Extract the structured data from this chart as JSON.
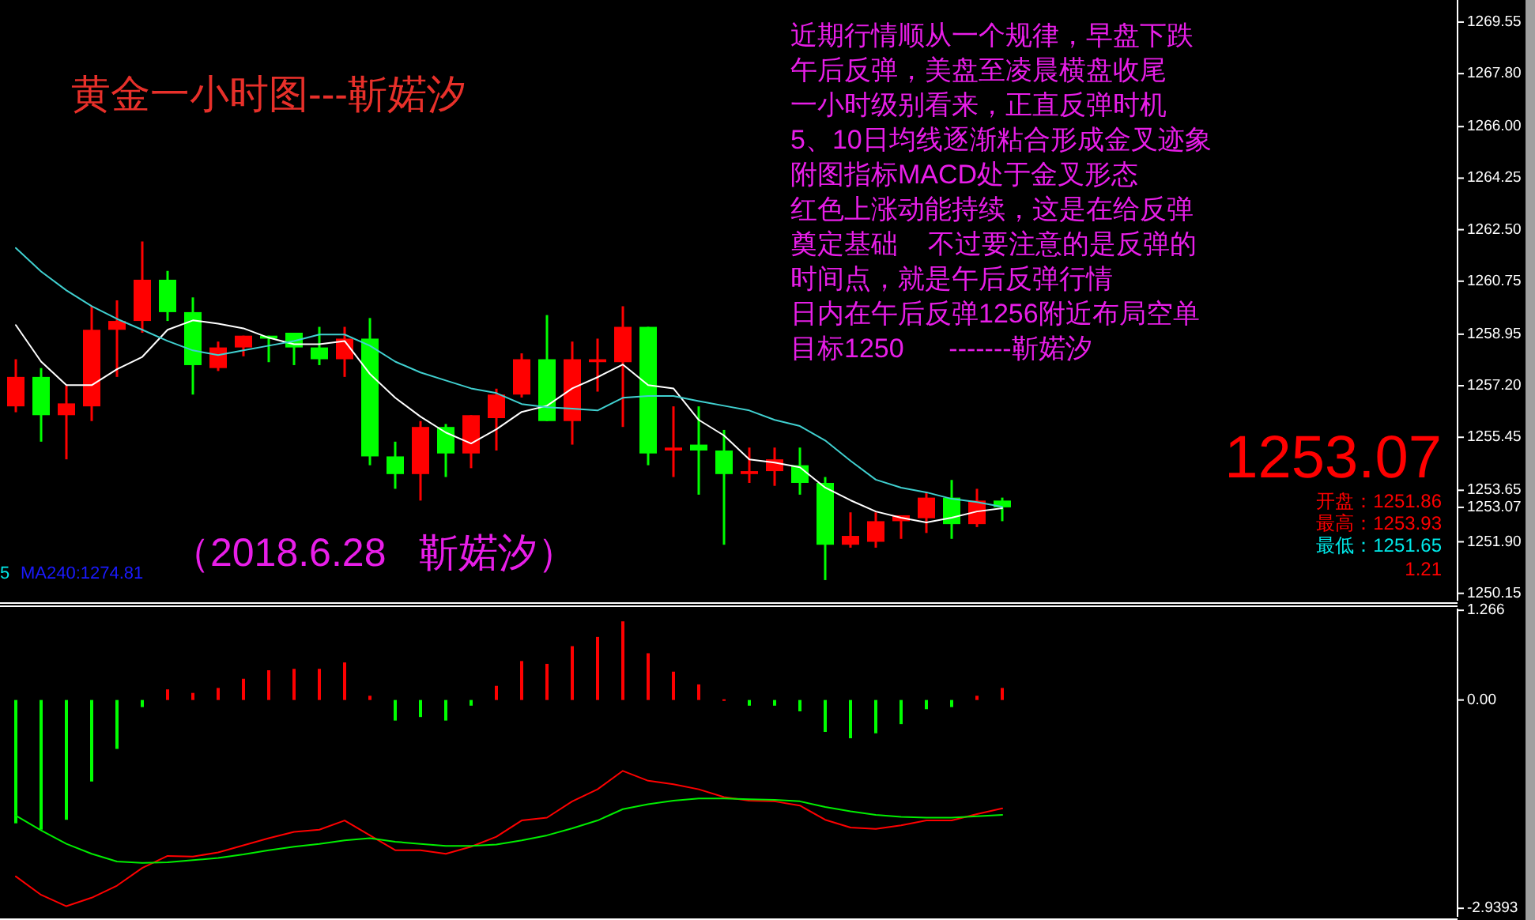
{
  "chart_data": [
    {
      "type": "candlestick",
      "categories": [
        null,
        null,
        null,
        null,
        null,
        null,
        null,
        null,
        null,
        null,
        null,
        null,
        null,
        null,
        null,
        null,
        null,
        null,
        null,
        null,
        null,
        null,
        null,
        null,
        null,
        null,
        null,
        null,
        null,
        null,
        null,
        null,
        null,
        null,
        null,
        null,
        null,
        null,
        null,
        null
      ],
      "ohlc": [
        [
          1256.5,
          1258.1,
          1256.3,
          1257.5
        ],
        [
          1257.5,
          1257.8,
          1255.3,
          1256.2
        ],
        [
          1256.2,
          1257.2,
          1254.7,
          1256.6
        ],
        [
          1256.5,
          1259.9,
          1256.0,
          1259.1
        ],
        [
          1259.1,
          1260.1,
          1257.5,
          1259.4
        ],
        [
          1259.4,
          1262.1,
          1259.0,
          1260.8
        ],
        [
          1260.8,
          1261.1,
          1259.4,
          1259.7
        ],
        [
          1259.7,
          1260.2,
          1256.9,
          1257.9
        ],
        [
          1257.8,
          1258.7,
          1257.7,
          1258.5
        ],
        [
          1258.5,
          1258.9,
          1258.2,
          1258.9
        ],
        [
          1258.9,
          1258.9,
          1258.0,
          1258.8
        ],
        [
          1259.0,
          1259.0,
          1257.9,
          1258.5
        ],
        [
          1258.5,
          1259.2,
          1257.9,
          1258.1
        ],
        [
          1258.1,
          1259.2,
          1257.5,
          1258.8
        ],
        [
          1258.8,
          1259.5,
          1254.5,
          1254.8
        ],
        [
          1254.8,
          1255.3,
          1253.7,
          1254.2
        ],
        [
          1254.2,
          1256.0,
          1253.3,
          1255.8
        ],
        [
          1255.8,
          1255.9,
          1254.1,
          1254.9
        ],
        [
          1254.9,
          1256.2,
          1254.4,
          1256.2
        ],
        [
          1256.1,
          1257.1,
          1255.0,
          1256.9
        ],
        [
          1256.9,
          1258.3,
          1256.8,
          1258.1
        ],
        [
          1258.1,
          1259.6,
          1256.0,
          1256.0
        ],
        [
          1256.0,
          1258.7,
          1255.2,
          1258.1
        ],
        [
          1258.0,
          1258.8,
          1257.0,
          1258.1
        ],
        [
          1258.0,
          1259.9,
          1255.8,
          1259.2
        ],
        [
          1259.2,
          1259.2,
          1254.5,
          1254.9
        ],
        [
          1255.0,
          1256.5,
          1254.1,
          1255.1
        ],
        [
          1255.2,
          1256.5,
          1253.5,
          1255.0
        ],
        [
          1255.0,
          1255.7,
          1251.8,
          1254.2
        ],
        [
          1254.2,
          1255.1,
          1253.9,
          1254.3
        ],
        [
          1254.3,
          1255.1,
          1253.8,
          1254.7
        ],
        [
          1254.5,
          1255.1,
          1253.5,
          1253.9
        ],
        [
          1253.9,
          1254.1,
          1250.6,
          1251.8
        ],
        [
          1251.8,
          1252.9,
          1251.7,
          1252.1
        ],
        [
          1251.9,
          1252.9,
          1251.7,
          1252.6
        ],
        [
          1252.6,
          1252.8,
          1252.0,
          1252.8
        ],
        [
          1252.7,
          1253.6,
          1252.2,
          1253.4
        ],
        [
          1253.4,
          1254.0,
          1252.0,
          1252.5
        ],
        [
          1252.5,
          1253.7,
          1252.4,
          1253.3
        ],
        [
          1253.3,
          1253.4,
          1252.6,
          1253.07
        ]
      ],
      "colors": [
        "#ff0000",
        "#00ff00",
        "#ff0000",
        "#ff0000",
        "#ff0000",
        "#ff0000",
        "#00ff00",
        "#00ff00",
        "#ff0000",
        "#ff0000",
        "#00ff00",
        "#00ff00",
        "#00ff00",
        "#ff0000",
        "#00ff00",
        "#00ff00",
        "#ff0000",
        "#00ff00",
        "#ff0000",
        "#ff0000",
        "#ff0000",
        "#00ff00",
        "#ff0000",
        "#ff0000",
        "#ff0000",
        "#00ff00",
        "#ff0000",
        "#00ff00",
        "#00ff00",
        "#ff0000",
        "#ff0000",
        "#00ff00",
        "#00ff00",
        "#ff0000",
        "#ff0000",
        "#ff0000",
        "#ff0000",
        "#00ff00",
        "#ff0000",
        "#00ff00"
      ],
      "series": [
        {
          "type": "line",
          "color": "#ffffff",
          "values": [
            1259.26,
            1258.02,
            1257.22,
            1257.22,
            1257.76,
            1258.18,
            1259.1,
            1259.42,
            1259.31,
            1259.15,
            1258.83,
            1258.61,
            1258.61,
            1258.72,
            1257.6,
            1256.79,
            1256.15,
            1255.61,
            1255.24,
            1255.72,
            1256.31,
            1256.52,
            1257.11,
            1257.49,
            1257.92,
            1257.22,
            1257.11,
            1256.04,
            1255.51,
            1254.7,
            1254.59,
            1254.43,
            1253.74,
            1253.31,
            1252.93,
            1252.72,
            1252.56,
            1252.72,
            1252.93,
            1253.04
          ]
        },
        {
          "type": "line",
          "color": "#40d0d0",
          "values": [
            1261.88,
            1261.08,
            1260.44,
            1259.9,
            1259.47,
            1259.1,
            1258.72,
            1258.4,
            1258.24,
            1258.4,
            1258.56,
            1258.72,
            1258.94,
            1258.94,
            1258.56,
            1258.02,
            1257.65,
            1257.38,
            1257.11,
            1256.95,
            1256.58,
            1256.47,
            1256.42,
            1256.36,
            1256.79,
            1256.85,
            1256.85,
            1256.68,
            1256.52,
            1256.36,
            1256.04,
            1255.83,
            1255.34,
            1254.65,
            1254.01,
            1253.74,
            1253.58,
            1253.36,
            1253.25,
            1253.09
          ]
        }
      ],
      "ylim": [
        1249.9,
        1270.3
      ],
      "yticks": [
        {
          "value": 1269.55,
          "label": "1269.55"
        },
        {
          "value": 1267.8,
          "label": "1267.80"
        },
        {
          "value": 1266,
          "label": "1266.00"
        },
        {
          "value": 1264.25,
          "label": "1264.25"
        },
        {
          "value": 1262.5,
          "label": "1262.50"
        },
        {
          "value": 1260.75,
          "label": "1260.75"
        },
        {
          "value": 1258.95,
          "label": "1258.95"
        },
        {
          "value": 1257.2,
          "label": "1257.20"
        },
        {
          "value": 1255.45,
          "label": "1255.45"
        },
        {
          "value": 1253.65,
          "label": "1253.65"
        },
        {
          "value": 1253.07,
          "label": "1253.07"
        },
        {
          "value": 1251.9,
          "label": "1251.90"
        },
        {
          "value": 1250.15,
          "label": "1250.15"
        }
      ],
      "tick_labels": "y",
      "annotations": [
        "黄金一小时图---靳婼汐",
        "近期行情顺从一个规律，早盘下跌",
        "午后反弹，美盘至凌晨横盘收尾",
        "一小时级别看来，正直反弹时机",
        "5、10日均线逐渐粘合形成金叉迹象",
        "附图指标MACD处于金叉形态",
        "红色上涨动能持续，这是在给反弹",
        "奠定基础    不过要注意的是反弹的",
        "时间点，就是午后反弹行情",
        "日内在午后反弹1256附近布局空单",
        "目标1250      -------靳婼汐",
        "（2018.6.28   靳婼汐）",
        "1253.07",
        "开盘：1251.86",
        "最高：1253.93",
        "最低：1251.65",
        "1.21",
        "MA240:1274.81",
        "5"
      ]
    },
    {
      "type": "bar",
      "categories": [
        null,
        null,
        null,
        null,
        null,
        null,
        null,
        null,
        null,
        null,
        null,
        null,
        null,
        null,
        null,
        null,
        null,
        null,
        null,
        null,
        null,
        null,
        null,
        null,
        null,
        null,
        null,
        null,
        null,
        null,
        null,
        null,
        null,
        null,
        null,
        null,
        null,
        null,
        null,
        null
      ],
      "series": [
        {
          "type": "bar",
          "colors": [
            "#00ff00",
            "#00ff00",
            "#00ff00",
            "#00ff00",
            "#00ff00",
            "#00ff00",
            "#ff0000",
            "#ff0000",
            "#ff0000",
            "#ff0000",
            "#ff0000",
            "#ff0000",
            "#ff0000",
            "#ff0000",
            "#ff0000",
            "#00ff00",
            "#00ff00",
            "#00ff00",
            "#00ff00",
            "#ff0000",
            "#ff0000",
            "#ff0000",
            "#ff0000",
            "#ff0000",
            "#ff0000",
            "#ff0000",
            "#ff0000",
            "#ff0000",
            "#ff0000",
            "#00ff00",
            "#00ff00",
            "#00ff00",
            "#00ff00",
            "#00ff00",
            "#00ff00",
            "#00ff00",
            "#00ff00",
            "#00ff00",
            "#ff0000",
            "#ff0000"
          ],
          "values": [
            -1.74,
            -1.83,
            -1.69,
            -1.15,
            -0.69,
            -0.1,
            0.15,
            0.1,
            0.17,
            0.3,
            0.42,
            0.44,
            0.44,
            0.53,
            0.06,
            -0.29,
            -0.24,
            -0.29,
            -0.08,
            0.2,
            0.55,
            0.51,
            0.76,
            0.89,
            1.11,
            0.66,
            0.4,
            0.22,
            0.01,
            -0.08,
            -0.08,
            -0.16,
            -0.45,
            -0.54,
            -0.47,
            -0.34,
            -0.13,
            -0.1,
            0.06,
            0.17
          ]
        },
        {
          "type": "line",
          "color": "#ff0000",
          "values": [
            -2.49,
            -2.75,
            -2.91,
            -2.79,
            -2.62,
            -2.37,
            -2.2,
            -2.21,
            -2.15,
            -2.05,
            -1.95,
            -1.86,
            -1.83,
            -1.7,
            -1.91,
            -2.12,
            -2.12,
            -2.17,
            -2.07,
            -1.93,
            -1.7,
            -1.66,
            -1.43,
            -1.26,
            -1.0,
            -1.14,
            -1.19,
            -1.26,
            -1.37,
            -1.42,
            -1.43,
            -1.49,
            -1.69,
            -1.8,
            -1.82,
            -1.77,
            -1.7,
            -1.7,
            -1.61,
            -1.53
          ]
        },
        {
          "type": "line",
          "color": "#00ee00",
          "values": [
            -1.63,
            -1.84,
            -2.03,
            -2.17,
            -2.28,
            -2.3,
            -2.29,
            -2.26,
            -2.23,
            -2.18,
            -2.12,
            -2.07,
            -2.03,
            -1.98,
            -1.95,
            -2.0,
            -2.03,
            -2.06,
            -2.06,
            -2.04,
            -1.98,
            -1.91,
            -1.81,
            -1.7,
            -1.54,
            -1.47,
            -1.42,
            -1.39,
            -1.39,
            -1.4,
            -1.41,
            -1.43,
            -1.51,
            -1.57,
            -1.62,
            -1.65,
            -1.66,
            -1.66,
            -1.64,
            -1.62
          ]
        }
      ],
      "ylim": [
        -3.06,
        1.29
      ],
      "yticks": [
        {
          "value": 1.266,
          "label": "1.266"
        },
        {
          "value": 0,
          "label": "0.00"
        },
        {
          "value": -2.9393,
          "label": "-2.9393"
        }
      ],
      "tick_labels": "y"
    }
  ]
}
